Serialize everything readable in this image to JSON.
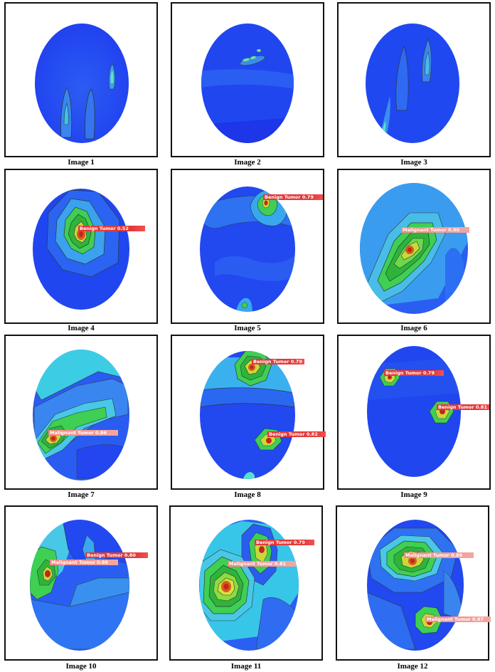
{
  "panels": [
    {
      "id": 1,
      "caption": "Image 1",
      "labels": []
    },
    {
      "id": 2,
      "caption": "Image 2",
      "labels": []
    },
    {
      "id": 3,
      "caption": "Image 3",
      "labels": []
    },
    {
      "id": 4,
      "caption": "Image 4",
      "labels": [
        {
          "text": "Benign Tumor 0.52",
          "kind": "benign"
        }
      ]
    },
    {
      "id": 5,
      "caption": "Image 5",
      "labels": [
        {
          "text": "Benign Tumor 0.79",
          "kind": "benign"
        }
      ]
    },
    {
      "id": 6,
      "caption": "Image 6",
      "labels": [
        {
          "text": "Malignant Tumor 0.90",
          "kind": "malignant"
        }
      ]
    },
    {
      "id": 7,
      "caption": "Image 7",
      "labels": [
        {
          "text": "Malignant Tumor 0.86",
          "kind": "malignant"
        }
      ]
    },
    {
      "id": 8,
      "caption": "Image 8",
      "labels": [
        {
          "text": "Benign Tumor 0.79",
          "kind": "benign"
        },
        {
          "text": "Benign Tumor 0.82",
          "kind": "benign"
        }
      ]
    },
    {
      "id": 9,
      "caption": "Image 9",
      "labels": [
        {
          "text": "Benign Tumor 0.79",
          "kind": "benign"
        },
        {
          "text": "Benign Tumor 0.81",
          "kind": "benign"
        }
      ]
    },
    {
      "id": 10,
      "caption": "Image 10",
      "labels": [
        {
          "text": "Benign Tumor 0.80",
          "kind": "benign"
        },
        {
          "text": "Malignant Tumor 0.86",
          "kind": "malignant"
        }
      ]
    },
    {
      "id": 11,
      "caption": "Image 11",
      "labels": [
        {
          "text": "Benign Tumor 0.79",
          "kind": "benign"
        },
        {
          "text": "Malignant Tumor 0.81",
          "kind": "malignant"
        }
      ]
    },
    {
      "id": 12,
      "caption": "Image 12",
      "labels": [
        {
          "text": "Malignant Tumor 0.86",
          "kind": "malignant"
        },
        {
          "text": "Malignant Tumor 0.87",
          "kind": "malignant"
        }
      ]
    }
  ],
  "colors": {
    "field_dark": "#1f3ff0",
    "field": "#2a60f2",
    "field_light": "#3f8ef0",
    "cyan": "#38c6e8",
    "green": "#3fd24a",
    "yellow": "#d6e23a",
    "hot": "#d23a1e",
    "contour": "#2b3a3a",
    "benign_tag": "#e23a3a",
    "malignant_tag": "#f4a6a2"
  }
}
